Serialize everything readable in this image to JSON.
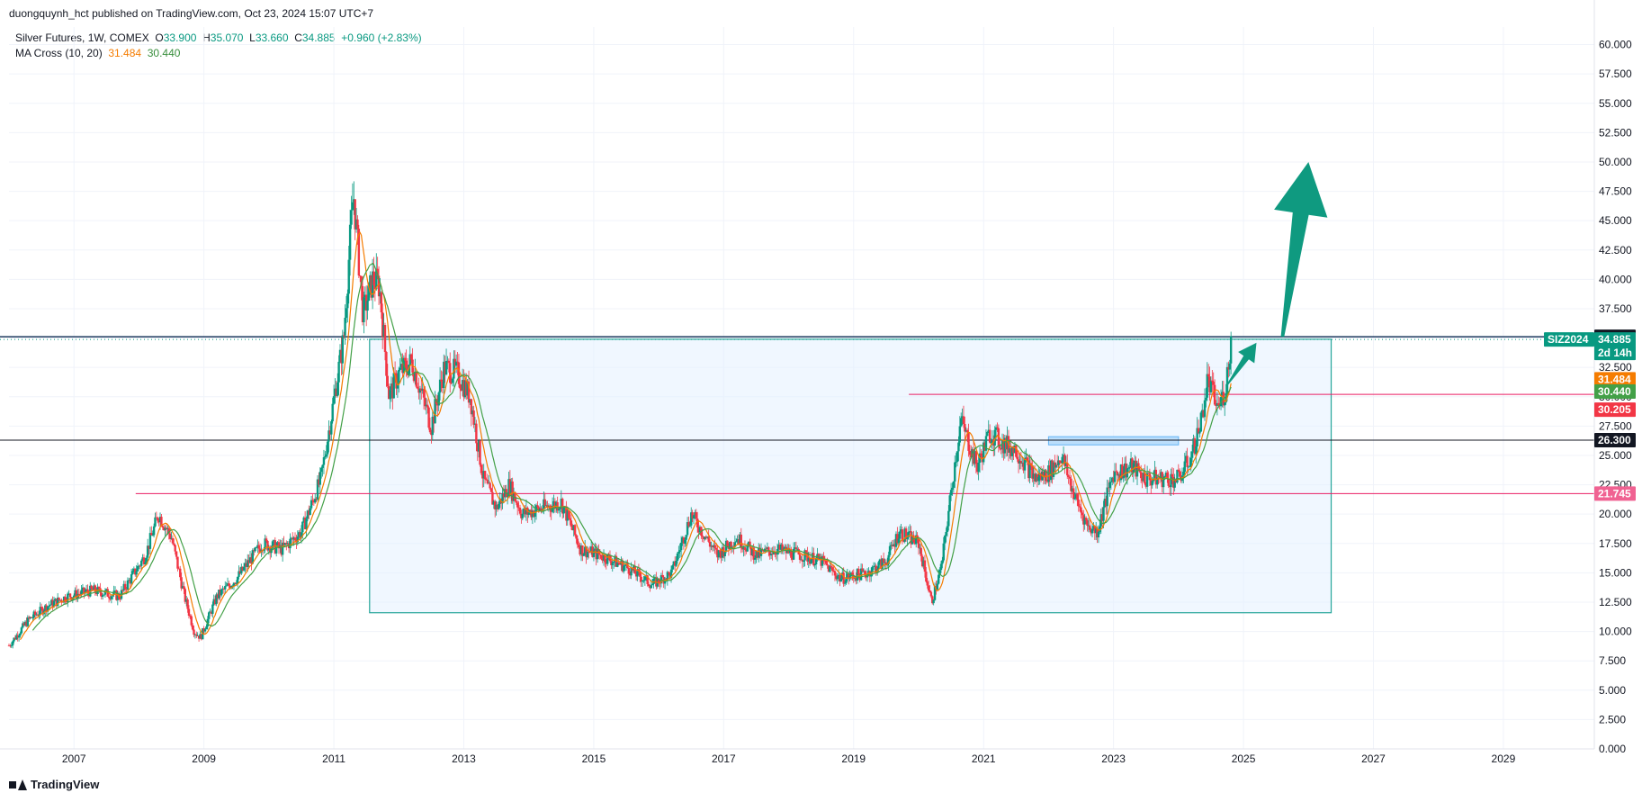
{
  "header": {
    "author": "duongquynh_hct",
    "published_on": "published on TradingView.com, Oct 23, 2024 15:07 UTC+7"
  },
  "legend": {
    "symbol": "Silver Futures, 1W, COMEX",
    "o_label": "O",
    "o_value": "33.900",
    "h_label": "H",
    "h_value": "35.070",
    "l_label": "L",
    "l_value": "33.660",
    "c_label": "C",
    "c_value": "34.885",
    "change": "+0.960 (+2.83%)",
    "ma_name": "MA Cross (10, 20)",
    "ma_fast": "31.484",
    "ma_slow": "30.440"
  },
  "footer": {
    "brand": "TradingView"
  },
  "colors": {
    "up": "#089981",
    "down": "#f23645",
    "ma_fast": "#f57c00",
    "ma_slow": "#43a047",
    "box_fill": "#e3f0ff",
    "box_stroke": "#26a69a",
    "pink_line": "#e91e63",
    "arrow": "#0f9a80",
    "grid": "#f0f3fa"
  },
  "chart_data": {
    "type": "candlestick",
    "timeframe": "1W",
    "x_range": [
      2006.0,
      2030.4
    ],
    "ylim": [
      0,
      61.5
    ],
    "y_ticks": [
      "0.000",
      "2.500",
      "5.000",
      "7.500",
      "10.000",
      "12.500",
      "15.000",
      "17.500",
      "20.000",
      "22.500",
      "25.000",
      "27.500",
      "30.000",
      "32.500",
      "35.000",
      "37.500",
      "40.000",
      "42.500",
      "45.000",
      "47.500",
      "50.000",
      "52.500",
      "55.000",
      "57.500",
      "60.000"
    ],
    "x_ticks": [
      "2007",
      "2009",
      "2011",
      "2013",
      "2015",
      "2017",
      "2019",
      "2021",
      "2023",
      "2025",
      "2027",
      "2029"
    ],
    "price_path": [
      [
        2006.0,
        8.8
      ],
      [
        2006.3,
        11.0
      ],
      [
        2006.6,
        12.2
      ],
      [
        2006.9,
        13.0
      ],
      [
        2007.3,
        13.5
      ],
      [
        2007.7,
        13.0
      ],
      [
        2008.1,
        16.5
      ],
      [
        2008.3,
        20.0
      ],
      [
        2008.5,
        18.0
      ],
      [
        2008.7,
        13.0
      ],
      [
        2008.85,
        10.0
      ],
      [
        2008.95,
        9.5
      ],
      [
        2009.2,
        13.0
      ],
      [
        2009.5,
        14.5
      ],
      [
        2009.9,
        17.5
      ],
      [
        2010.2,
        17.0
      ],
      [
        2010.5,
        18.5
      ],
      [
        2010.8,
        23.0
      ],
      [
        2010.95,
        28.0
      ],
      [
        2011.15,
        35.0
      ],
      [
        2011.3,
        47.5
      ],
      [
        2011.45,
        37.0
      ],
      [
        2011.6,
        40.0
      ],
      [
        2011.7,
        39.5
      ],
      [
        2011.85,
        30.0
      ],
      [
        2012.0,
        32.0
      ],
      [
        2012.2,
        33.0
      ],
      [
        2012.5,
        27.5
      ],
      [
        2012.7,
        32.5
      ],
      [
        2012.9,
        32.0
      ],
      [
        2013.1,
        30.0
      ],
      [
        2013.3,
        23.0
      ],
      [
        2013.5,
        20.5
      ],
      [
        2013.7,
        22.5
      ],
      [
        2013.9,
        20.0
      ],
      [
        2014.2,
        20.5
      ],
      [
        2014.5,
        21.0
      ],
      [
        2014.8,
        17.0
      ],
      [
        2015.1,
        16.5
      ],
      [
        2015.5,
        15.5
      ],
      [
        2015.9,
        14.0
      ],
      [
        2016.2,
        15.0
      ],
      [
        2016.5,
        20.0
      ],
      [
        2016.9,
        16.5
      ],
      [
        2017.2,
        18.0
      ],
      [
        2017.5,
        16.5
      ],
      [
        2017.8,
        17.0
      ],
      [
        2018.2,
        16.5
      ],
      [
        2018.5,
        16.0
      ],
      [
        2018.8,
        14.5
      ],
      [
        2019.2,
        15.0
      ],
      [
        2019.5,
        16.0
      ],
      [
        2019.7,
        18.5
      ],
      [
        2020.0,
        17.5
      ],
      [
        2020.2,
        12.5
      ],
      [
        2020.35,
        15.5
      ],
      [
        2020.55,
        24.0
      ],
      [
        2020.65,
        28.0
      ],
      [
        2020.9,
        24.0
      ],
      [
        2021.1,
        27.0
      ],
      [
        2021.3,
        26.0
      ],
      [
        2021.5,
        25.5
      ],
      [
        2021.8,
        23.0
      ],
      [
        2022.0,
        23.5
      ],
      [
        2022.2,
        25.0
      ],
      [
        2022.4,
        21.5
      ],
      [
        2022.6,
        19.0
      ],
      [
        2022.75,
        18.5
      ],
      [
        2023.0,
        23.5
      ],
      [
        2023.3,
        24.0
      ],
      [
        2023.5,
        23.0
      ],
      [
        2023.8,
        23.0
      ],
      [
        2024.0,
        23.0
      ],
      [
        2024.2,
        25.0
      ],
      [
        2024.35,
        28.0
      ],
      [
        2024.45,
        31.5
      ],
      [
        2024.6,
        29.0
      ],
      [
        2024.72,
        30.5
      ],
      [
        2024.81,
        34.9
      ]
    ],
    "ma_fast_value": 31.484,
    "ma_slow_value": 30.44,
    "current_price": 34.885,
    "horizontal_lines": [
      {
        "price": 35.115,
        "label": "35.115"
      },
      {
        "price": 26.3,
        "label": "26.300"
      },
      {
        "price": 30.205,
        "label": "30.205",
        "from": 2019.85
      },
      {
        "price": 21.745,
        "label": "21.745",
        "from": 2007.95
      }
    ],
    "range_box": {
      "x0": 2011.55,
      "x1": 2026.35,
      "y0": 11.6,
      "y1": 34.9
    },
    "small_box": {
      "x0": 2022.0,
      "x1": 2024.0,
      "y0": 25.9,
      "y1": 26.6
    },
    "arrow_big": {
      "from": [
        2025.6,
        35.1
      ],
      "to": [
        2026.0,
        50.0
      ]
    },
    "arrow_small": {
      "from": [
        2024.75,
        31.0
      ],
      "to": [
        2025.2,
        34.6
      ]
    },
    "price_badges": {
      "high_line": "35.115",
      "symbol_tag": "SIZ2024",
      "current": "34.885",
      "countdown": "2d 14h",
      "ma_fast": "31.484",
      "ma_slow": "30.440",
      "pink_upper": "30.205",
      "support": "26.300",
      "pink_lower": "21.745"
    }
  }
}
